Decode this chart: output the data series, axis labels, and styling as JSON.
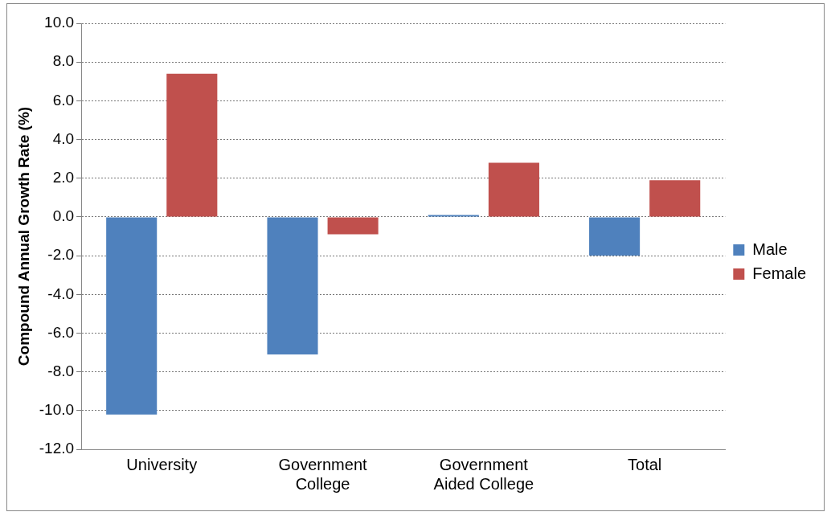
{
  "chart_data": {
    "type": "bar",
    "ylabel": "Compound Annual Growth Rate (%)",
    "categories": [
      "University",
      "Government College",
      "Government Aided College",
      "Total"
    ],
    "series": [
      {
        "name": "Male",
        "color": "#4f81bd",
        "values": [
          -10.2,
          -7.1,
          0.1,
          -2.0
        ]
      },
      {
        "name": "Female",
        "color": "#c0504d",
        "values": [
          7.4,
          -0.9,
          2.8,
          1.9
        ]
      }
    ],
    "ylim": [
      -12,
      10
    ],
    "yticks": [
      {
        "value": -12,
        "label": "-12.0"
      },
      {
        "value": -10,
        "label": "-10.0"
      },
      {
        "value": -8,
        "label": "-8.0"
      },
      {
        "value": -6,
        "label": "-6.0"
      },
      {
        "value": -4,
        "label": "-4.0"
      },
      {
        "value": -2,
        "label": "-2.0"
      },
      {
        "value": 0,
        "label": "0.0"
      },
      {
        "value": 2,
        "label": "2.0"
      },
      {
        "value": 4,
        "label": "4.0"
      },
      {
        "value": 6,
        "label": "6.0"
      },
      {
        "value": 8,
        "label": "8.0"
      },
      {
        "value": 10,
        "label": "10.0"
      }
    ],
    "grid": "y",
    "legend": "right"
  }
}
